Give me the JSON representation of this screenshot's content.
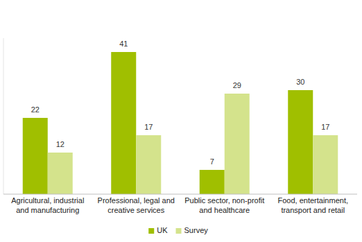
{
  "chart_data": {
    "type": "bar",
    "categories": [
      "Agricultural, industrial and manufacturing",
      "Professional, legal and creative services",
      "Public sector, non-profit and healthcare",
      "Food, entertainment, transport and retail"
    ],
    "series": [
      {
        "name": "UK",
        "color": "#a0bf00",
        "values": [
          22,
          41,
          7,
          30
        ]
      },
      {
        "name": "Survey",
        "color": "#d4e38c",
        "values": [
          12,
          17,
          29,
          17
        ]
      }
    ],
    "ylim": [
      0,
      45
    ],
    "grid": false,
    "legend": "bottom",
    "data_labels": true,
    "tick_labels": "x"
  }
}
